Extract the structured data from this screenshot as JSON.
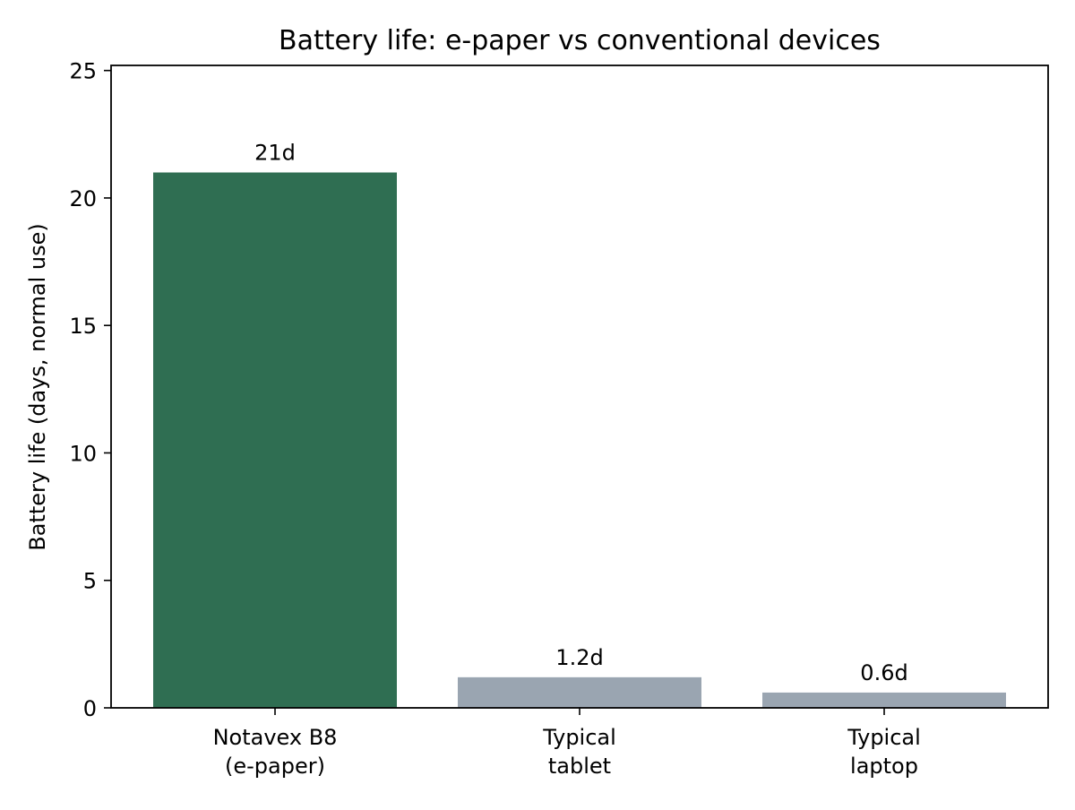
{
  "chart_data": {
    "type": "bar",
    "title": "Battery life: e-paper vs conventional devices",
    "xlabel": "",
    "ylabel": "Battery life (days, normal use)",
    "categories": [
      [
        "Notavex B8",
        "(e-paper)"
      ],
      [
        "Typical",
        "tablet"
      ],
      [
        "Typical",
        "laptop"
      ]
    ],
    "values": [
      21,
      1.2,
      0.6
    ],
    "value_labels": [
      "21d",
      "1.2d",
      "0.6d"
    ],
    "bar_colors": [
      "#2f6e52",
      "#9aa5b1",
      "#9aa5b1"
    ],
    "ylim": [
      0,
      25.2
    ],
    "yticks": [
      0,
      5,
      10,
      15,
      20,
      25
    ],
    "grid": false,
    "legend": "none"
  }
}
